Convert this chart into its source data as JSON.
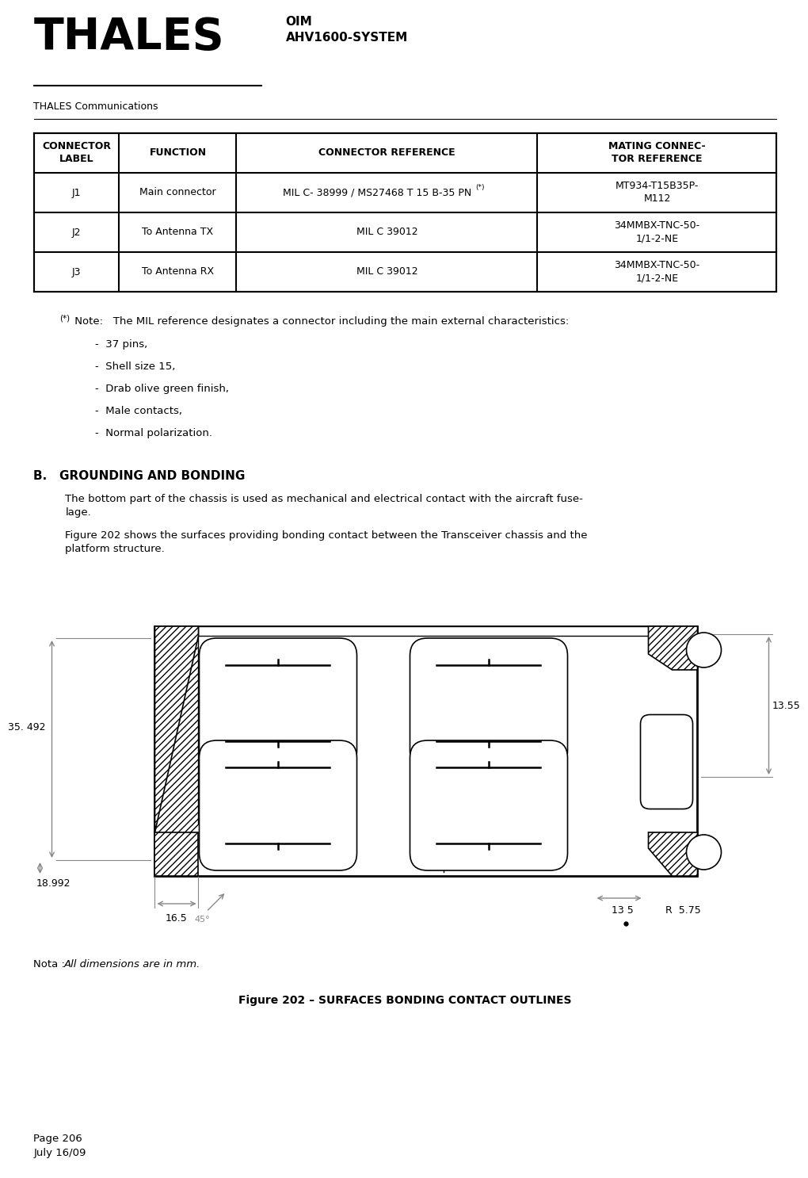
{
  "title_logo": "THALES",
  "title_doc_line1": "OIM",
  "title_doc_line2": "AHV1600-SYSTEM",
  "subtitle": "THALES Communications",
  "table_headers": [
    "CONNECTOR\nLABEL",
    "FUNCTION",
    "CONNECTOR REFERENCE",
    "MATING CONNEC-\nTOR REFERENCE"
  ],
  "table_rows": [
    [
      "J1",
      "Main connector",
      "MIL C- 38999 / MS27468 T 15 B-35 PN (*)",
      "MT934-T15B35P-\nM112"
    ],
    [
      "J2",
      "To Antenna TX",
      "MIL C 39012",
      "34MMBX-TNC-50-\n1/1-2-NE"
    ],
    [
      "J3",
      "To Antenna RX",
      "MIL C 39012",
      "34MMBX-TNC-50-\n1/1-2-NE"
    ]
  ],
  "note_prefix": "(*)",
  "note_text": " Note:   The MIL reference designates a connector including the main external characteristics:",
  "bullet_items": [
    "-  37 pins,",
    "-  Shell size 15,",
    "-  Drab olive green finish,",
    "-  Male contacts,",
    "-  Normal polarization."
  ],
  "section_b_title": "B.   GROUNDING AND BONDING",
  "section_b_para1": "The bottom part of the chassis is used as mechanical and electrical contact with the aircraft fuse-\nlage.",
  "section_b_para2": "Figure 202 shows the surfaces providing bonding contact between the Transceiver chassis and the\nplatform structure.",
  "nota_text": "Nota : ",
  "nota_italic": "All dimensions are in mm.",
  "figure_caption": "Figure 202 – SURFACES BONDING CONTACT OUTLINES",
  "dim_35_492": "35. 492",
  "dim_13_55": "13.55",
  "dim_16_5": "16.5",
  "dim_13_5": "13 5",
  "dim_R_5_75": "R  5.75",
  "dim_18_992": "18.992",
  "dim_45": "45°",
  "page_text": "Page 206\nJuly 16/09",
  "bg_color": "#ffffff",
  "text_color": "#000000",
  "gray_color": "#888888"
}
